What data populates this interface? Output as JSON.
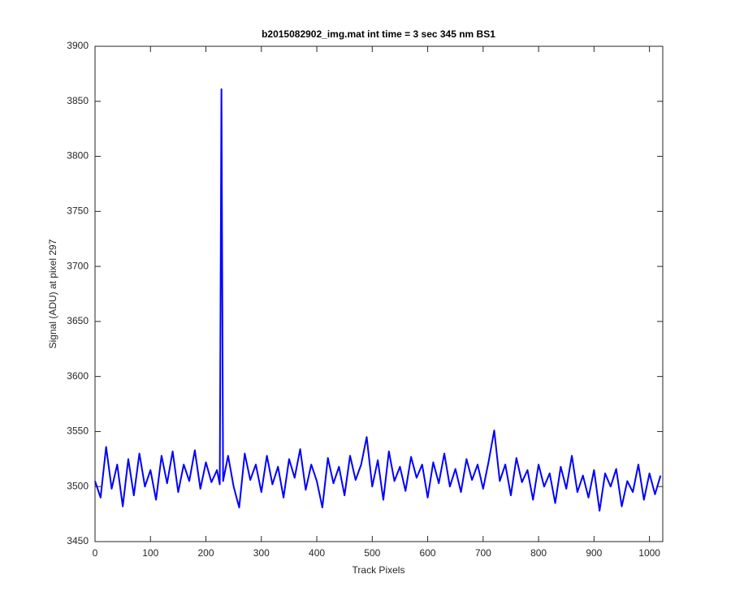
{
  "chart_data": {
    "type": "line",
    "title": "b2015082902_img.mat int time = 3 sec  345 nm BS1",
    "x_label": "Track Pixels",
    "y_label": "Signal (ADU) at pixel 297",
    "x": [
      0,
      10,
      20,
      30,
      40,
      50,
      60,
      70,
      80,
      90,
      100,
      110,
      120,
      130,
      140,
      150,
      160,
      170,
      180,
      190,
      200,
      210,
      220,
      225,
      228,
      231,
      240,
      250,
      260,
      270,
      280,
      290,
      300,
      310,
      320,
      330,
      340,
      350,
      360,
      370,
      380,
      390,
      400,
      410,
      420,
      430,
      440,
      450,
      460,
      470,
      480,
      490,
      500,
      510,
      520,
      530,
      540,
      550,
      560,
      570,
      580,
      590,
      600,
      610,
      620,
      630,
      640,
      650,
      660,
      670,
      680,
      690,
      700,
      710,
      720,
      730,
      740,
      750,
      760,
      770,
      780,
      790,
      800,
      810,
      820,
      830,
      840,
      850,
      860,
      870,
      880,
      890,
      900,
      910,
      920,
      930,
      940,
      950,
      960,
      970,
      980,
      990,
      1000,
      1010,
      1020
    ],
    "series": [
      {
        "color": "#0000ff",
        "values": [
          3505,
          3490,
          3536,
          3498,
          3520,
          3482,
          3525,
          3492,
          3530,
          3500,
          3515,
          3488,
          3528,
          3503,
          3532,
          3495,
          3520,
          3505,
          3533,
          3498,
          3522,
          3504,
          3515,
          3502,
          3861,
          3505,
          3528,
          3500,
          3481,
          3530,
          3506,
          3520,
          3495,
          3528,
          3502,
          3518,
          3490,
          3525,
          3508,
          3534,
          3497,
          3520,
          3505,
          3481,
          3526,
          3503,
          3518,
          3492,
          3528,
          3506,
          3520,
          3545,
          3500,
          3524,
          3488,
          3532,
          3505,
          3518,
          3496,
          3527,
          3508,
          3520,
          3490,
          3522,
          3503,
          3530,
          3500,
          3516,
          3495,
          3525,
          3506,
          3520,
          3498,
          3523,
          3551,
          3505,
          3520,
          3492,
          3526,
          3504,
          3515,
          3488,
          3520,
          3500,
          3512,
          3485,
          3518,
          3498,
          3528,
          3495,
          3510,
          3490,
          3515,
          3478,
          3512,
          3500,
          3516,
          3482,
          3505,
          3495,
          3520,
          3488,
          3512,
          3493,
          3510
        ]
      }
    ],
    "xlim": [
      0,
      1024
    ],
    "xticks": [
      0,
      100,
      200,
      300,
      400,
      500,
      600,
      700,
      800,
      900,
      1000
    ],
    "ylim": [
      3450,
      3900
    ],
    "yticks": [
      3450,
      3500,
      3550,
      3600,
      3650,
      3700,
      3750,
      3800,
      3850,
      3900
    ],
    "grid": false
  }
}
